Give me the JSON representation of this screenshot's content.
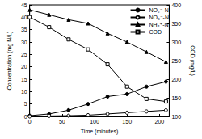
{
  "chart_data": {
    "type": "line",
    "x_label": "Time (minutes)",
    "y_label": "Concentration (mg N/L)",
    "y2_label": "COD (mg/L)",
    "x": [
      0,
      30,
      60,
      90,
      120,
      150,
      180,
      210
    ],
    "xlim": [
      0,
      215
    ],
    "xticks": [
      0,
      50,
      100,
      150,
      200
    ],
    "ylim": [
      0,
      45
    ],
    "yticks": [
      0,
      5,
      10,
      15,
      20,
      25,
      30,
      35,
      40,
      45
    ],
    "y2lim": [
      100,
      400
    ],
    "y2ticks": [
      100,
      150,
      200,
      250,
      300,
      350,
      400
    ],
    "grid": false,
    "legend": "top-right",
    "series": [
      {
        "name": "NO₂⁻-N",
        "color": "#000000",
        "marker": "circle",
        "line_style": "solid",
        "values": [
          0.3,
          1,
          2.5,
          5,
          8,
          9,
          12,
          14
        ]
      },
      {
        "name": "NO₃⁻-N",
        "color": "#000000",
        "marker": "circle_open",
        "line_style": "solid",
        "values": [
          0,
          0.2,
          0.3,
          0.5,
          1,
          1.5,
          2,
          2.5
        ]
      },
      {
        "name": "NH₄⁺-N",
        "color": "#000000",
        "marker": "triangle",
        "line_style": "solid",
        "values": [
          43,
          41,
          39,
          37.5,
          33.5,
          30,
          26,
          22
        ]
      },
      {
        "name": "COD",
        "color": "#000000",
        "marker": "square_open",
        "line_style": "solid",
        "axis": "y2",
        "values": [
          367,
          340,
          307,
          280,
          240,
          180,
          147,
          140
        ]
      }
    ]
  }
}
